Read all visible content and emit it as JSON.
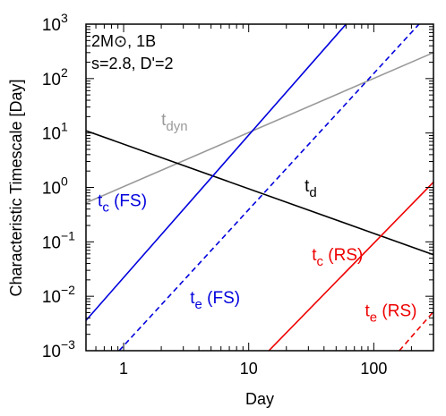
{
  "chart_data": {
    "type": "line",
    "xlabel": "Day",
    "ylabel": "Characteristic Timescale [Day]",
    "xscale": "log",
    "yscale": "log",
    "xlim": [
      0.5,
      300
    ],
    "ylim": [
      0.001,
      1000
    ],
    "grid": false,
    "x_ticks": [
      {
        "value": 1,
        "label": "1"
      },
      {
        "value": 10,
        "label": "10"
      },
      {
        "value": 100,
        "label": "100"
      }
    ],
    "y_ticks": [
      {
        "value": 0.001,
        "base": "10",
        "exp": "−3"
      },
      {
        "value": 0.01,
        "base": "10",
        "exp": "−2"
      },
      {
        "value": 0.1,
        "base": "10",
        "exp": "−1"
      },
      {
        "value": 1,
        "base": "10",
        "exp": "0"
      },
      {
        "value": 10,
        "base": "10",
        "exp": "1"
      },
      {
        "value": 100,
        "base": "10",
        "exp": "2"
      },
      {
        "value": 1000,
        "base": "10",
        "exp": "3"
      }
    ],
    "annotation_lines": [
      "2M⊙, 1B",
      "s=2.8, D'=2"
    ],
    "series": [
      {
        "label_main": "t",
        "label_sub": "dyn",
        "label_rest": "",
        "color": "#999999",
        "dash": "solid",
        "x": [
          0.5,
          300
        ],
        "y": [
          0.52,
          300
        ],
        "label_at": [
          2.0,
          14.0
        ]
      },
      {
        "label_main": "t",
        "label_sub": "d",
        "label_rest": "",
        "color": "#000000",
        "dash": "solid",
        "x": [
          0.5,
          300
        ],
        "y": [
          11.0,
          0.058
        ],
        "label_at": [
          28.0,
          0.85
        ]
      },
      {
        "label_main": "t",
        "label_sub": "c",
        "label_rest": " (FS)",
        "color": "#0000dd",
        "dash": "solid",
        "x": [
          0.5,
          60
        ],
        "y": [
          0.0036,
          1000
        ],
        "label_at": [
          0.62,
          0.45
        ]
      },
      {
        "label_main": "t",
        "label_sub": "e",
        "label_rest": " (FS)",
        "color": "#0000dd",
        "dash": "dashed",
        "x": [
          0.92,
          230
        ],
        "y": [
          0.001,
          1000
        ],
        "label_at": [
          3.4,
          0.0075
        ]
      },
      {
        "label_main": "t",
        "label_sub": "c",
        "label_rest": " (RS)",
        "color": "#ee0000",
        "dash": "solid",
        "x": [
          14.5,
          300
        ],
        "y": [
          0.001,
          1.25
        ],
        "label_at": [
          32.0,
          0.046
        ]
      },
      {
        "label_main": "t",
        "label_sub": "e",
        "label_rest": " (RS)",
        "color": "#ee0000",
        "dash": "dashed",
        "x": [
          160,
          300
        ],
        "y": [
          0.001,
          0.0052
        ],
        "label_at": [
          85.0,
          0.0043
        ]
      }
    ]
  }
}
